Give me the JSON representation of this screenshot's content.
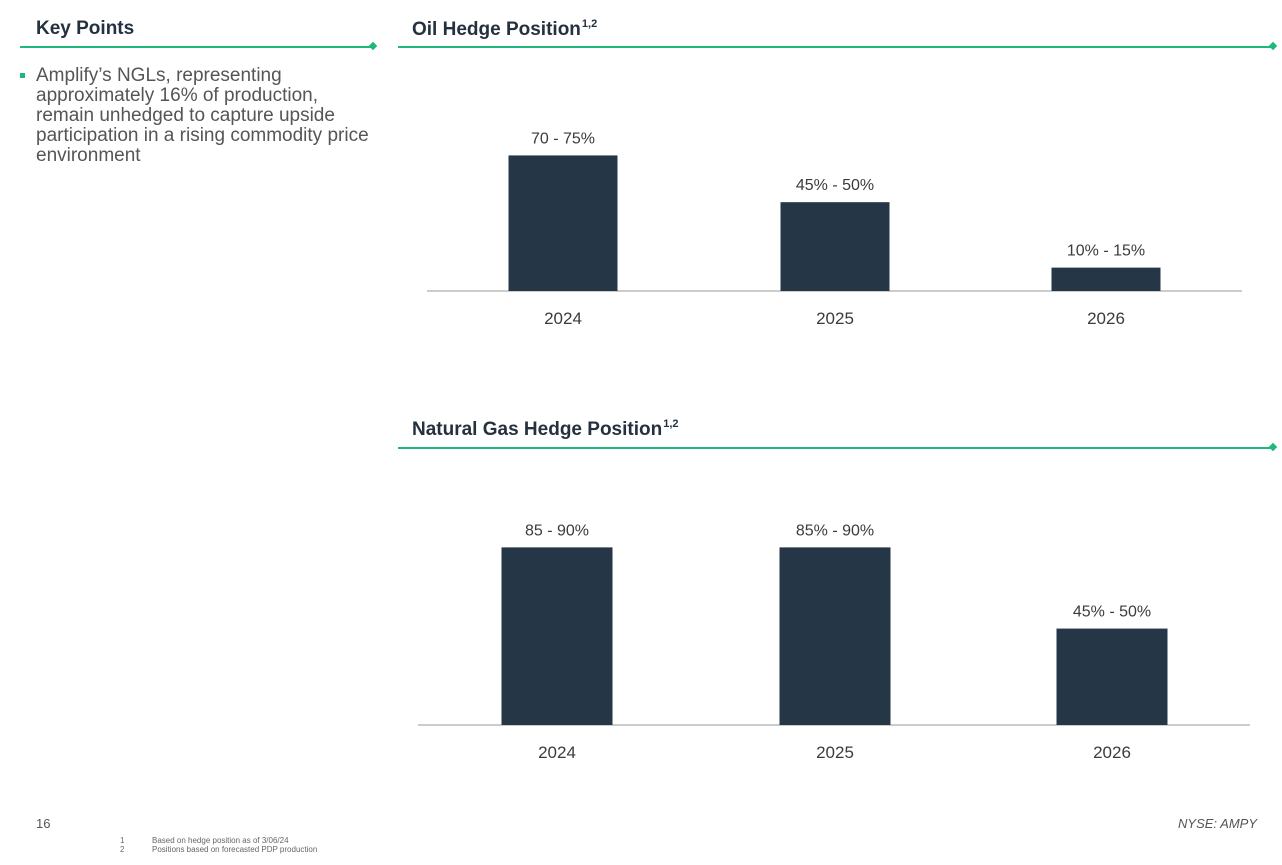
{
  "key_points": {
    "title": "Key Points",
    "bullets": [
      "Amplify’s NGLs, representing approximately 16% of production, remain unhedged to capture upside participation in a rising commodity price environment"
    ]
  },
  "oil_section": {
    "title": "Oil Hedge Position",
    "superscript": "1,2"
  },
  "gas_section": {
    "title": "Natural Gas Hedge Position",
    "superscript": "1,2"
  },
  "colors": {
    "accent": "#1fb87a",
    "bar": "#253646",
    "axis": "#999999"
  },
  "chart_data": [
    {
      "type": "bar",
      "title": "Oil Hedge Position",
      "categories": [
        "2024",
        "2025",
        "2026"
      ],
      "values": [
        72.5,
        47.5,
        12.5
      ],
      "data_labels": [
        "70 - 75%",
        "45% - 50%",
        "10% - 15%"
      ],
      "xlabel": "",
      "ylabel": "",
      "ylim": [
        0,
        100
      ],
      "grid": false
    },
    {
      "type": "bar",
      "title": "Natural Gas Hedge Position",
      "categories": [
        "2024",
        "2025",
        "2026"
      ],
      "values": [
        87.5,
        87.5,
        47.5
      ],
      "data_labels": [
        "85 - 90%",
        "85% - 90%",
        "45% - 50%"
      ],
      "xlabel": "",
      "ylabel": "",
      "ylim": [
        0,
        100
      ],
      "grid": false
    }
  ],
  "footer": {
    "page_number": "16",
    "ticker": "NYSE: AMPY",
    "footnotes": [
      {
        "num": "1",
        "text": "Based on hedge position as of 3/06/24"
      },
      {
        "num": "2",
        "text": "Positions based on forecasted PDP production"
      }
    ]
  }
}
